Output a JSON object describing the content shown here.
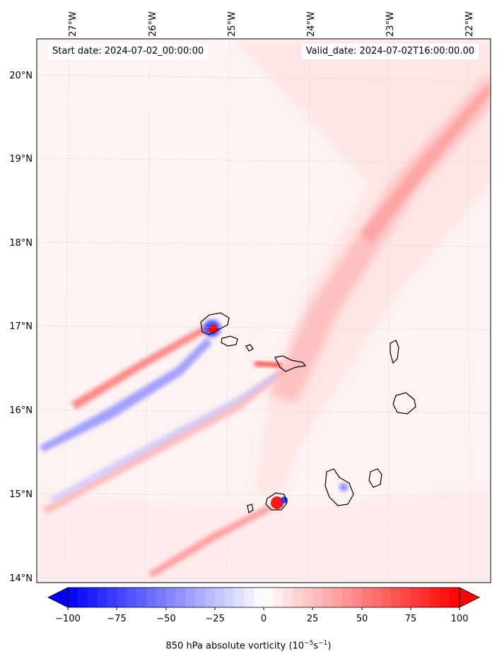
{
  "header": {
    "start_date": "Start date: 2024-07-02_00:00:00",
    "valid_date": "Valid_date: 2024-07-02T16:00:00.00"
  },
  "axes": {
    "lon_labels": [
      "27°W",
      "26°W",
      "25°W",
      "24°W",
      "23°W",
      "22°W"
    ],
    "lat_labels": [
      "20°N",
      "19°N",
      "18°N",
      "17°N",
      "16°N",
      "15°N",
      "14°N"
    ]
  },
  "colorbar": {
    "title_main": "850 hPa absolute vorticity (10",
    "title_exp1": "−5",
    "title_mid": "s",
    "title_exp2": "−1",
    "title_end": ")",
    "ticks": [
      "−100",
      "−75",
      "−50",
      "−25",
      "0",
      "25",
      "50",
      "75",
      "100"
    ],
    "min": -100,
    "max": 100,
    "neg_color": "#0000ff",
    "pos_color": "#ff0000"
  },
  "colors": {
    "background_field": "#fdf4f4",
    "positive_field": "#ff0000",
    "negative_field": "#0000ff",
    "gridline": "#d0d0d0"
  }
}
